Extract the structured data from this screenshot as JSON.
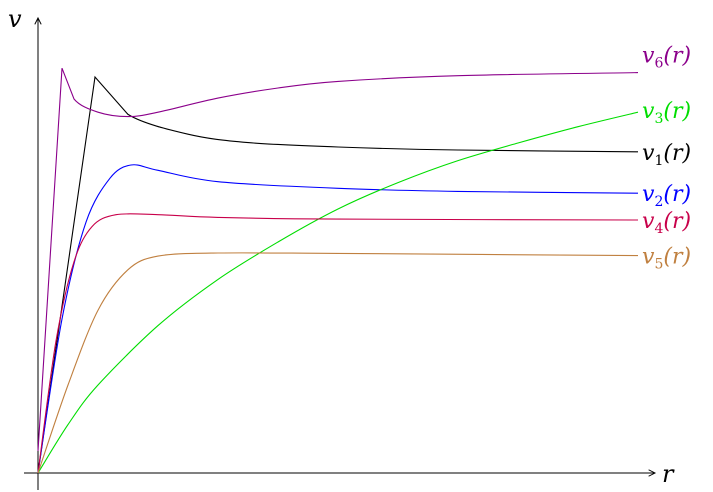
{
  "chart_data": {
    "type": "line",
    "xlabel": "r",
    "ylabel": "v",
    "series": [
      {
        "name": "v1(r)",
        "label_base": "v",
        "label_sub": "1",
        "label_arg": "(r)",
        "color": "#000000",
        "points": [
          [
            0,
            0
          ],
          [
            0.095,
            0.9
          ],
          [
            0.15,
            0.815
          ],
          [
            0.25,
            0.77
          ],
          [
            0.35,
            0.751
          ],
          [
            0.5,
            0.741
          ],
          [
            0.7,
            0.734
          ],
          [
            1.0,
            0.73
          ]
        ]
      },
      {
        "name": "v2(r)",
        "label_base": "v",
        "label_sub": "2",
        "label_arg": "(r)",
        "color": "#0000ff",
        "points": [
          [
            0,
            0
          ],
          [
            0.04,
            0.35
          ],
          [
            0.08,
            0.57
          ],
          [
            0.12,
            0.67
          ],
          [
            0.155,
            0.7
          ],
          [
            0.2,
            0.688
          ],
          [
            0.3,
            0.662
          ],
          [
            0.5,
            0.647
          ],
          [
            0.7,
            0.64
          ],
          [
            1.0,
            0.636
          ]
        ]
      },
      {
        "name": "v3(r)",
        "label_base": "v",
        "label_sub": "3",
        "label_arg": "(r)",
        "color": "#00dd00",
        "points": [
          [
            0,
            0
          ],
          [
            0.05,
            0.11
          ],
          [
            0.1,
            0.2
          ],
          [
            0.2,
            0.335
          ],
          [
            0.3,
            0.44
          ],
          [
            0.4,
            0.525
          ],
          [
            0.5,
            0.6
          ],
          [
            0.6,
            0.66
          ],
          [
            0.7,
            0.71
          ],
          [
            0.8,
            0.75
          ],
          [
            0.9,
            0.787
          ],
          [
            1.0,
            0.82
          ]
        ]
      },
      {
        "name": "v4(r)",
        "label_base": "v",
        "label_sub": "4",
        "label_arg": "(r)",
        "color": "#c8004a",
        "points": [
          [
            0,
            0
          ],
          [
            0.03,
            0.3
          ],
          [
            0.06,
            0.48
          ],
          [
            0.09,
            0.56
          ],
          [
            0.13,
            0.587
          ],
          [
            0.2,
            0.587
          ],
          [
            0.3,
            0.581
          ],
          [
            0.5,
            0.577
          ],
          [
            1.0,
            0.575
          ]
        ]
      },
      {
        "name": "v5(r)",
        "label_base": "v",
        "label_sub": "5",
        "label_arg": "(r)",
        "color": "#c08040",
        "points": [
          [
            0,
            0
          ],
          [
            0.05,
            0.2
          ],
          [
            0.1,
            0.37
          ],
          [
            0.15,
            0.462
          ],
          [
            0.2,
            0.493
          ],
          [
            0.3,
            0.5
          ],
          [
            0.5,
            0.499
          ],
          [
            1.0,
            0.494
          ]
        ]
      },
      {
        "name": "v6(r)",
        "label_base": "v",
        "label_sub": "6",
        "label_arg": "(r)",
        "color": "#8b008b",
        "points": [
          [
            0,
            0.05
          ],
          [
            0.04,
            0.92
          ],
          [
            0.06,
            0.85
          ],
          [
            0.1,
            0.82
          ],
          [
            0.15,
            0.81
          ],
          [
            0.2,
            0.82
          ],
          [
            0.3,
            0.852
          ],
          [
            0.4,
            0.875
          ],
          [
            0.5,
            0.89
          ],
          [
            0.7,
            0.903
          ],
          [
            1.0,
            0.91
          ]
        ]
      }
    ],
    "xlim": [
      0,
      1
    ],
    "ylim": [
      0,
      1
    ],
    "grid": false,
    "legend": "right-end labels"
  }
}
